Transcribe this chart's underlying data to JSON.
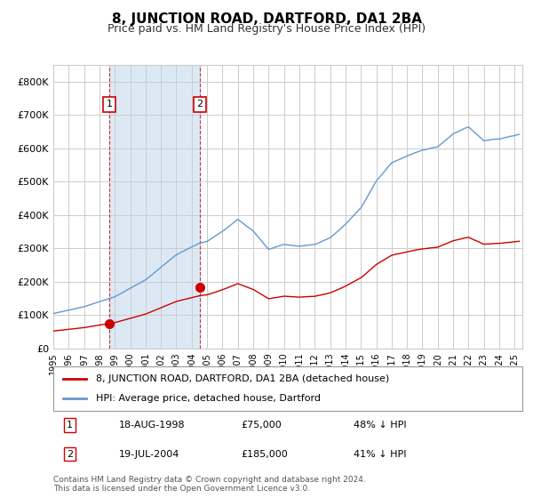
{
  "title": "8, JUNCTION ROAD, DARTFORD, DA1 2BA",
  "subtitle": "Price paid vs. HM Land Registry's House Price Index (HPI)",
  "ylabel": "",
  "background_color": "#ffffff",
  "plot_bg_color": "#ffffff",
  "grid_color": "#cccccc",
  "hpi_color": "#6699cc",
  "price_color": "#cc0000",
  "shade_color": "#dce9f5",
  "purchase1_date": 1998.63,
  "purchase1_price": 75000,
  "purchase2_date": 2004.54,
  "purchase2_price": 185000,
  "legend_entries": [
    "8, JUNCTION ROAD, DARTFORD, DA1 2BA (detached house)",
    "HPI: Average price, detached house, Dartford"
  ],
  "table_rows": [
    [
      "1",
      "18-AUG-1998",
      "£75,000",
      "48% ↓ HPI"
    ],
    [
      "2",
      "19-JUL-2004",
      "£185,000",
      "41% ↓ HPI"
    ]
  ],
  "footer": "Contains HM Land Registry data © Crown copyright and database right 2024.\nThis data is licensed under the Open Government Licence v3.0.",
  "xmin": 1995.0,
  "xmax": 2025.5,
  "ymin": 0,
  "ymax": 850000
}
